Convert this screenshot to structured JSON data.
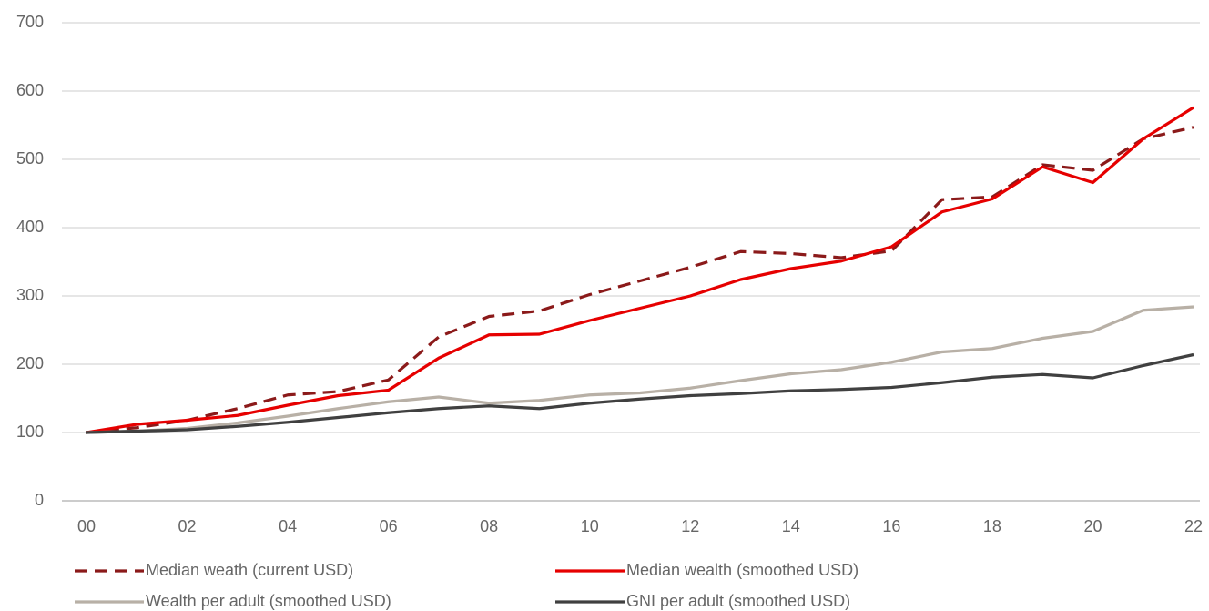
{
  "chart_data": {
    "type": "line",
    "categories": [
      "00",
      null,
      "02",
      null,
      "04",
      null,
      "06",
      null,
      "08",
      null,
      "10",
      null,
      "12",
      null,
      "14",
      null,
      "16",
      null,
      "18",
      null,
      "20",
      null,
      "22"
    ],
    "series": [
      {
        "name": "Median weath (current USD)",
        "color": "#8b1a1a",
        "dashed": true,
        "values": [
          100,
          107,
          118,
          135,
          155,
          160,
          177,
          240,
          270,
          278,
          302,
          322,
          342,
          365,
          362,
          356,
          366,
          441,
          445,
          492,
          484,
          530,
          547
        ]
      },
      {
        "name": "Median wealth (smoothed USD)",
        "color": "#e60000",
        "values": [
          100,
          112,
          118,
          125,
          140,
          154,
          162,
          209,
          243,
          244,
          264,
          282,
          300,
          324,
          340,
          351,
          372,
          423,
          442,
          489,
          466,
          530,
          576
        ]
      },
      {
        "name": "Wealth per adult (smoothed USD)",
        "color": "#b8b0a6",
        "values": [
          100,
          102,
          106,
          114,
          124,
          135,
          145,
          152,
          143,
          147,
          155,
          158,
          165,
          176,
          186,
          192,
          203,
          218,
          223,
          238,
          248,
          279,
          284
        ]
      },
      {
        "name": "GNI per adult (smoothed USD)",
        "color": "#404040",
        "values": [
          100,
          102,
          104,
          109,
          115,
          122,
          129,
          135,
          139,
          135,
          143,
          149,
          154,
          157,
          161,
          163,
          166,
          173,
          181,
          185,
          180,
          198,
          214
        ]
      }
    ],
    "ylim": [
      0,
      700
    ],
    "yticks": [
      0,
      100,
      200,
      300,
      400,
      500,
      600,
      700
    ],
    "grid": true
  }
}
